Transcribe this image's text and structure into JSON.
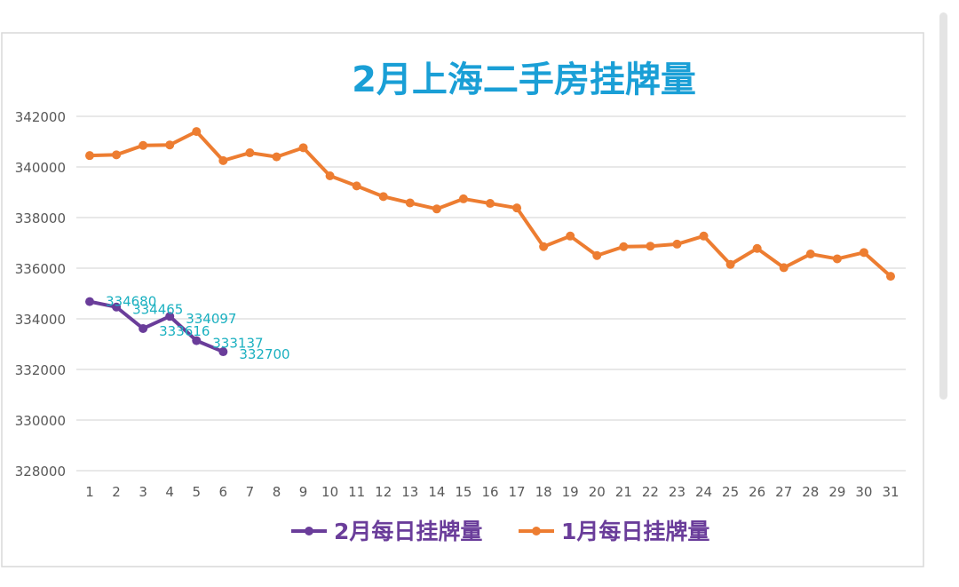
{
  "chart_data": {
    "type": "line",
    "title": "2月上海二手房挂牌量",
    "title_color": "#1a9fd6",
    "xlabel": "",
    "ylabel": "",
    "x": [
      1,
      2,
      3,
      4,
      5,
      6,
      7,
      8,
      9,
      10,
      11,
      12,
      13,
      14,
      15,
      16,
      17,
      18,
      19,
      20,
      21,
      22,
      23,
      24,
      25,
      26,
      27,
      28,
      29,
      30,
      31
    ],
    "ylim": [
      328000,
      342000
    ],
    "yticks": [
      328000,
      330000,
      332000,
      334000,
      336000,
      338000,
      340000,
      342000
    ],
    "grid": true,
    "legend": "bottom",
    "series": [
      {
        "name": "2月每日挂牌量",
        "color": "#6a3d9a",
        "label_color": "#1ab0c0",
        "x": [
          1,
          2,
          3,
          4,
          5,
          6
        ],
        "values": [
          334680,
          334465,
          333616,
          334097,
          333137,
          332700
        ],
        "data_labels": [
          "334680",
          "334465",
          "333616",
          "334097",
          "333137",
          "332700"
        ]
      },
      {
        "name": "1月每日挂牌量",
        "color": "#ed7d31",
        "x": [
          1,
          2,
          3,
          4,
          5,
          6,
          7,
          8,
          9,
          10,
          11,
          12,
          13,
          14,
          15,
          16,
          17,
          18,
          19,
          20,
          21,
          22,
          23,
          24,
          25,
          26,
          27,
          28,
          29,
          30,
          31
        ],
        "values": [
          340450,
          340480,
          340850,
          340870,
          341400,
          340250,
          340560,
          340400,
          340760,
          339650,
          339250,
          338830,
          338580,
          338340,
          338740,
          338560,
          338380,
          336850,
          337270,
          336500,
          336850,
          336870,
          336950,
          337270,
          336150,
          336780,
          336020,
          336560,
          336370,
          336620,
          335680
        ]
      }
    ]
  }
}
